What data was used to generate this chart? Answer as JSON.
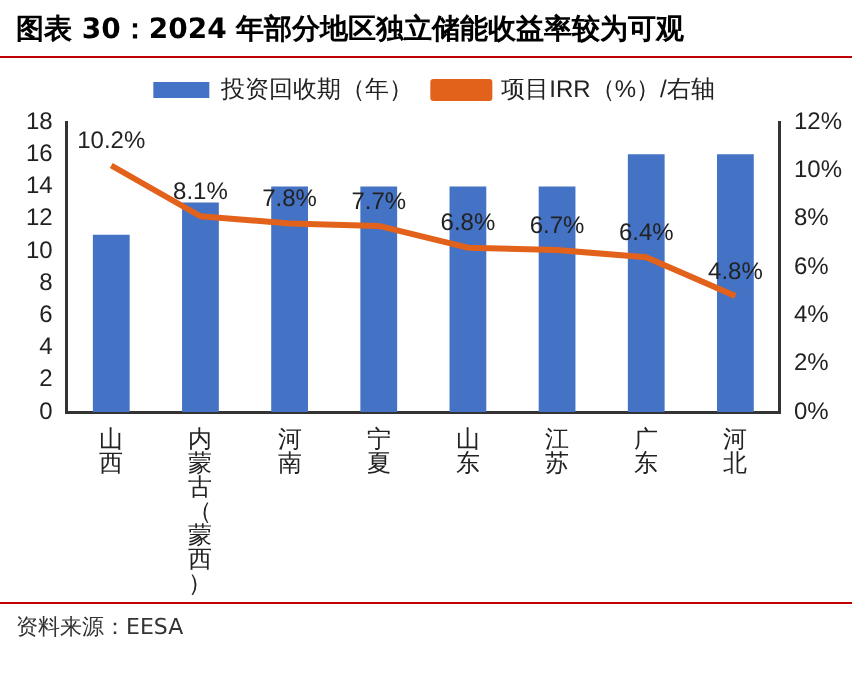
{
  "chart_data": {
    "type": "bar",
    "title": "图表 30：2024 年部分地区独立储能收益率较为可观",
    "categories": [
      "山西",
      "内蒙古（蒙西）",
      "河南",
      "宁夏",
      "山东",
      "江苏",
      "广东",
      "河北"
    ],
    "series": [
      {
        "name": "投资回收期（年）",
        "color": "#4472c4",
        "values": [
          11,
          13,
          14,
          14,
          14,
          14,
          16,
          16
        ]
      },
      {
        "name": "项目IRR（%）/右轴",
        "type": "line",
        "axis": "y2",
        "color": "#e2621b",
        "values": [
          10.2,
          8.1,
          7.8,
          7.7,
          6.8,
          6.7,
          6.4,
          4.8
        ],
        "value_labels": [
          "10.2%",
          "8.1%",
          "7.8%",
          "7.7%",
          "6.8%",
          "6.7%",
          "6.4%",
          "4.8%"
        ]
      }
    ],
    "ylim": [
      0,
      18
    ],
    "yticks": [
      0,
      2,
      4,
      6,
      8,
      10,
      12,
      14,
      16,
      18
    ],
    "y2lim": [
      0,
      12
    ],
    "y2ticks": [
      {
        "value": 0,
        "label": "0%"
      },
      {
        "value": 2,
        "label": "2%"
      },
      {
        "value": 4,
        "label": "4%"
      },
      {
        "value": 6,
        "label": "6%"
      },
      {
        "value": 8,
        "label": "8%"
      },
      {
        "value": 10,
        "label": "10%"
      },
      {
        "value": 12,
        "label": "12%"
      }
    ],
    "grid": false,
    "legend": "top",
    "marker": "none",
    "annotations": [
      "资料来源：EESA"
    ]
  }
}
